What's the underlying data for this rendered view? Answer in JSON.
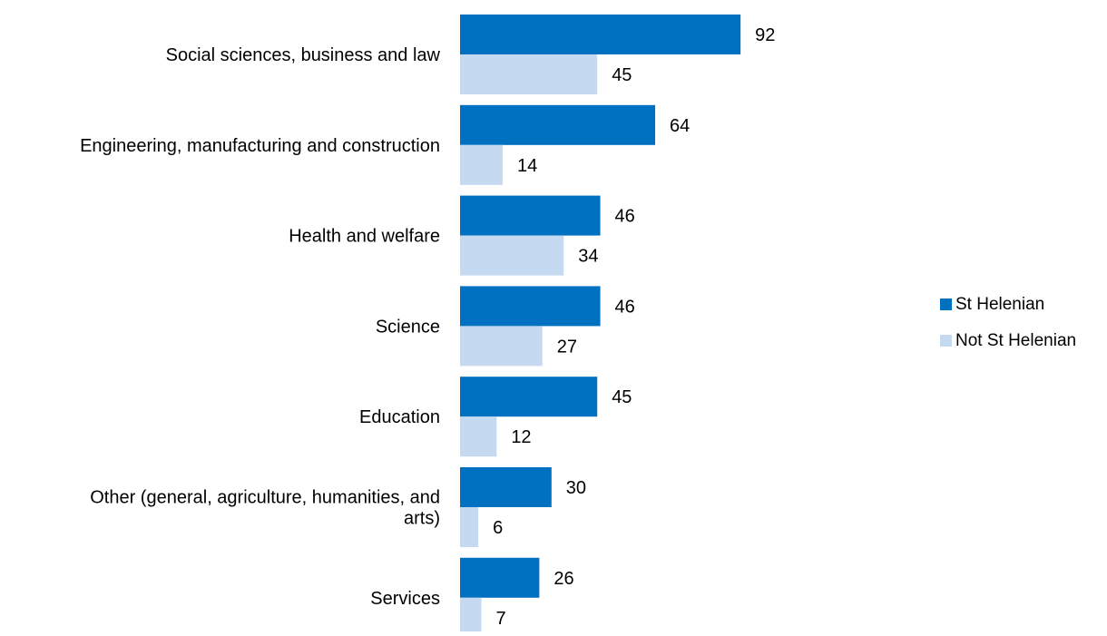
{
  "chart_data": {
    "type": "bar",
    "orientation": "horizontal",
    "title": "",
    "xlabel": "",
    "ylabel": "",
    "xlim": [
      0,
      100
    ],
    "grid": false,
    "legend_position": "right",
    "categories": [
      "Social sciences, business and law",
      "Engineering, manufacturing and construction",
      "Health and welfare",
      "Science",
      "Education",
      "Other (general, agriculture, humanities, and arts)",
      "Services"
    ],
    "category_label_lines": [
      [
        "Social sciences, business and law"
      ],
      [
        "Engineering, manufacturing and construction"
      ],
      [
        "Health and welfare"
      ],
      [
        "Science"
      ],
      [
        "Education"
      ],
      [
        "Other (general, agriculture, humanities, and",
        "arts)"
      ],
      [
        "Services"
      ]
    ],
    "series": [
      {
        "name": "St Helenian",
        "color": "#0070C0",
        "values": [
          92,
          64,
          46,
          46,
          45,
          30,
          26
        ]
      },
      {
        "name": "Not St Helenian",
        "color": "#C5D9F1",
        "values": [
          45,
          14,
          34,
          27,
          12,
          6,
          7
        ]
      }
    ]
  }
}
